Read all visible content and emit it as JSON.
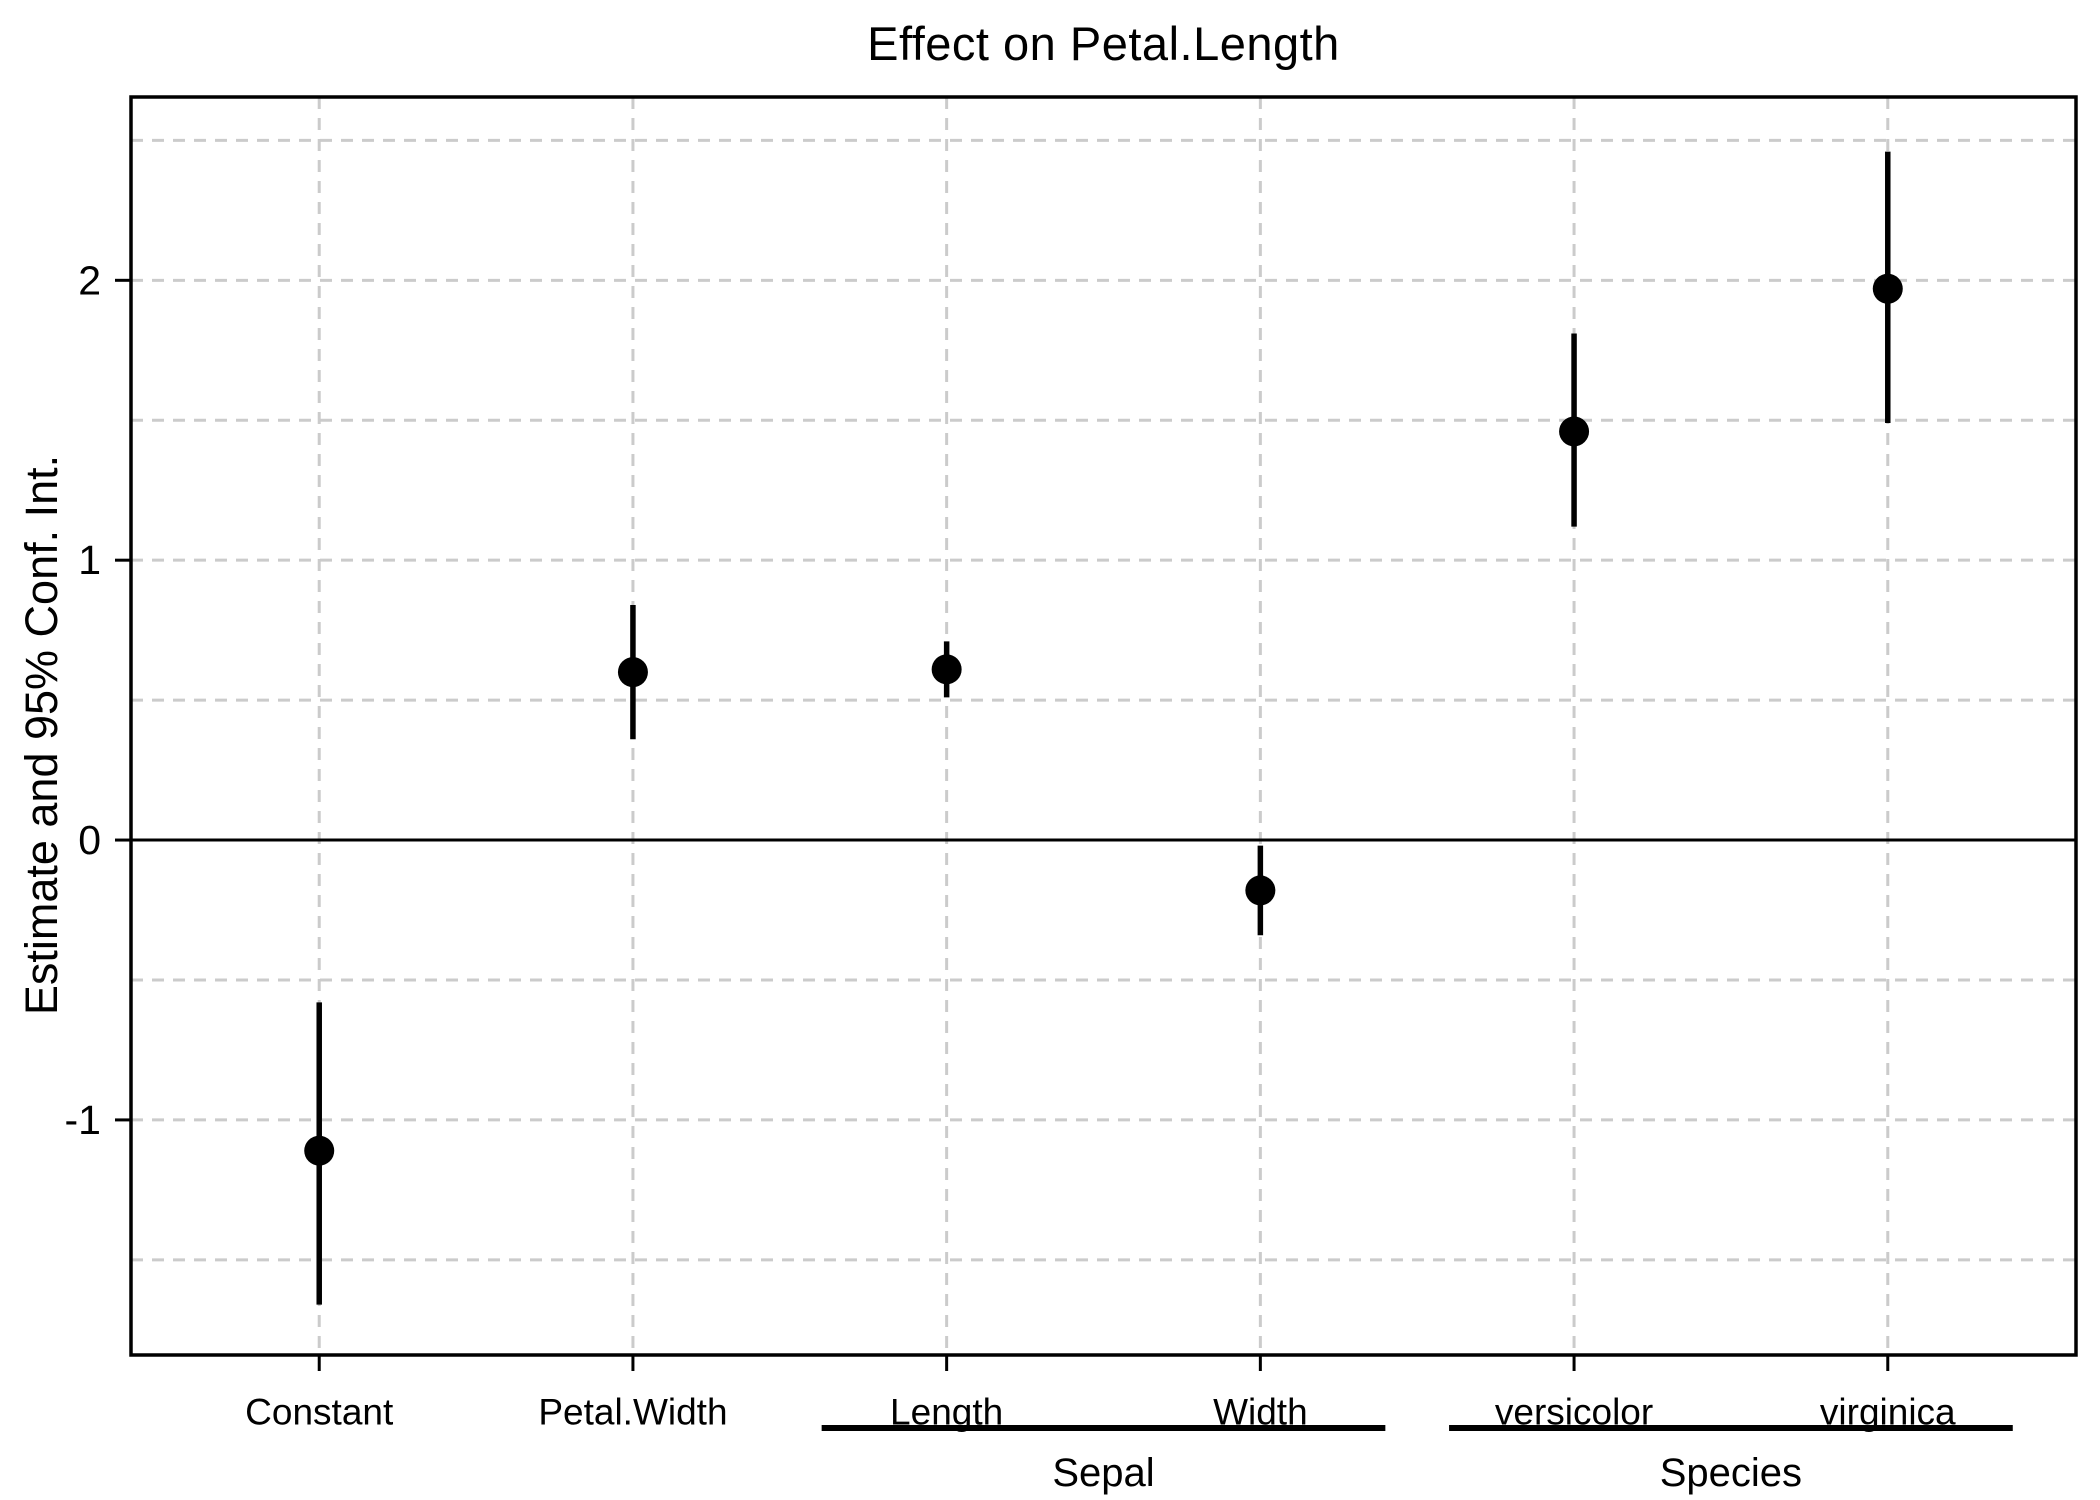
{
  "page": {
    "background": "#ffffff"
  },
  "chart_data": {
    "type": "pointrange",
    "title": "Effect on Petal.Length",
    "ylabel": "Estimate and 95% Conf. Int.",
    "xlabel": "",
    "legend": "none",
    "categories": [
      "Constant",
      "Petal.Width",
      "Length",
      "Width",
      "versicolor",
      "virginica"
    ],
    "groups": [
      {
        "label": "Sepal",
        "from": 2,
        "to": 3
      },
      {
        "label": "Species",
        "from": 4,
        "to": 5
      }
    ],
    "points": [
      {
        "category": "Constant",
        "estimate": -1.11,
        "ci_low": -1.66,
        "ci_high": -0.58
      },
      {
        "category": "Petal.Width",
        "estimate": 0.6,
        "ci_low": 0.36,
        "ci_high": 0.84
      },
      {
        "category": "Length",
        "estimate": 0.61,
        "ci_low": 0.51,
        "ci_high": 0.71
      },
      {
        "category": "Width",
        "estimate": -0.18,
        "ci_low": -0.34,
        "ci_high": -0.02
      },
      {
        "category": "versicolor",
        "estimate": 1.46,
        "ci_low": 1.12,
        "ci_high": 1.81
      },
      {
        "category": "virginica",
        "estimate": 1.97,
        "ci_low": 1.49,
        "ci_high": 2.46
      }
    ],
    "axis": {
      "yticks": [
        2,
        1,
        0,
        -1
      ],
      "ylim": [
        -1.84,
        2.655
      ],
      "gridlines_y": [
        2.5,
        2,
        1.5,
        1,
        0.5,
        -0.5,
        -1,
        -1.5
      ],
      "grid_style": "dashed",
      "grid_on": true,
      "zero_line": true
    },
    "colors": {
      "point": "#000000",
      "error_bar": "#000000",
      "grid": "#cbcbcb",
      "axis": "#000000",
      "background": "#ffffff"
    }
  }
}
